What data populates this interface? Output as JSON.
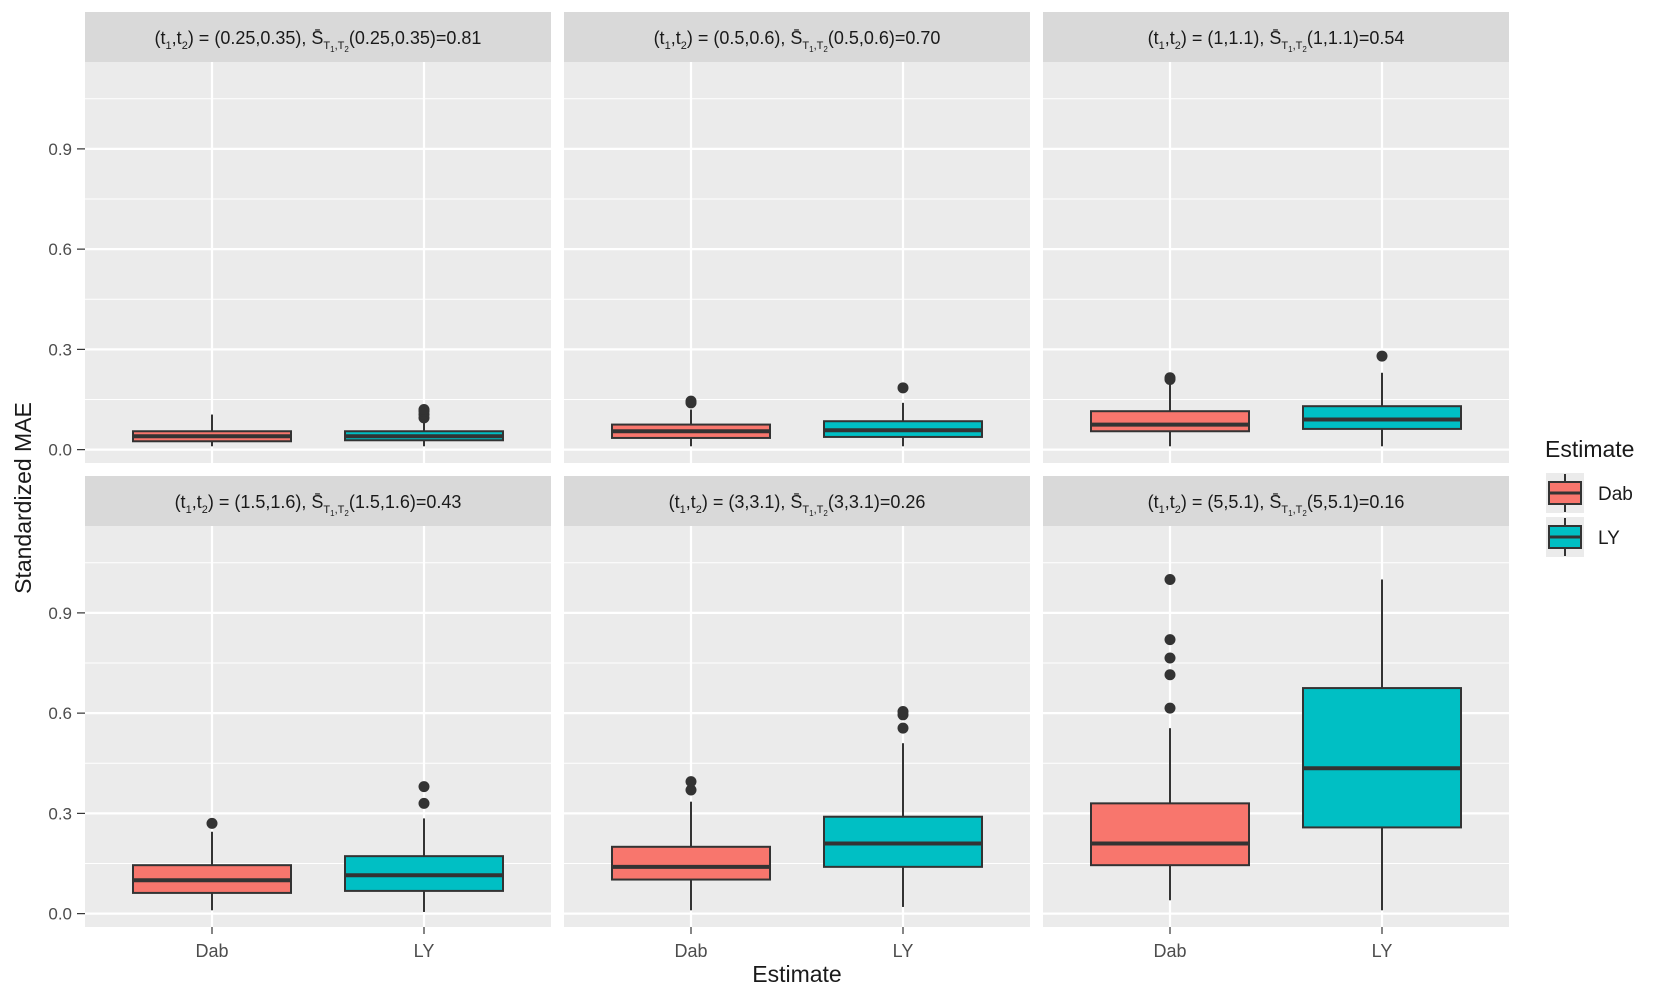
{
  "colors": {
    "dab": "#F8766D",
    "ly": "#00BFC4",
    "panel_bg": "#EBEBEB",
    "strip_bg": "#D9D9D9",
    "grid": "#FFFFFF",
    "text": "#1A1A1A",
    "tick_text": "#4D4D4D"
  },
  "chart_data": {
    "type": "boxplot",
    "xlabel": "Estimate",
    "ylabel": "Standardized MAE",
    "ylim": [
      -0.04,
      1.16
    ],
    "yticks": [
      "0.0",
      "0.3",
      "0.6",
      "0.9"
    ],
    "ytick_values": [
      0.0,
      0.3,
      0.6,
      0.9
    ],
    "categories": [
      "Dab",
      "LY"
    ],
    "legend": {
      "title": "Estimate",
      "position": "right",
      "entries": [
        {
          "label": "Dab",
          "color": "#F8766D"
        },
        {
          "label": "LY",
          "color": "#00BFC4"
        }
      ]
    },
    "panels": [
      {
        "tpair": "(0.25,0.35)",
        "sval": "(0.25,0.35)=0.81",
        "boxes": [
          {
            "name": "Dab",
            "min": 0.01,
            "q1": 0.025,
            "median": 0.04,
            "q3": 0.055,
            "max": 0.105,
            "outliers": []
          },
          {
            "name": "LY",
            "min": 0.01,
            "q1": 0.028,
            "median": 0.04,
            "q3": 0.055,
            "max": 0.09,
            "outliers": [
              0.095,
              0.105,
              0.115,
              0.12
            ]
          }
        ]
      },
      {
        "tpair": "(0.5,0.6)",
        "sval": "(0.5,0.6)=0.70",
        "boxes": [
          {
            "name": "Dab",
            "min": 0.01,
            "q1": 0.035,
            "median": 0.055,
            "q3": 0.075,
            "max": 0.12,
            "outliers": [
              0.14,
              0.145
            ]
          },
          {
            "name": "LY",
            "min": 0.01,
            "q1": 0.038,
            "median": 0.058,
            "q3": 0.085,
            "max": 0.14,
            "outliers": [
              0.185
            ]
          }
        ]
      },
      {
        "tpair": "(1,1.1)",
        "sval": "(1,1.1)=0.54",
        "boxes": [
          {
            "name": "Dab",
            "min": 0.01,
            "q1": 0.055,
            "median": 0.075,
            "q3": 0.115,
            "max": 0.2,
            "outliers": [
              0.21,
              0.215
            ]
          },
          {
            "name": "LY",
            "min": 0.01,
            "q1": 0.062,
            "median": 0.09,
            "q3": 0.13,
            "max": 0.23,
            "outliers": [
              0.28
            ]
          }
        ]
      },
      {
        "tpair": "(1.5,1.6)",
        "sval": "(1.5,1.6)=0.43",
        "boxes": [
          {
            "name": "Dab",
            "min": 0.01,
            "q1": 0.062,
            "median": 0.1,
            "q3": 0.145,
            "max": 0.245,
            "outliers": [
              0.27
            ]
          },
          {
            "name": "LY",
            "min": 0.005,
            "q1": 0.068,
            "median": 0.115,
            "q3": 0.172,
            "max": 0.285,
            "outliers": [
              0.33,
              0.38
            ]
          }
        ]
      },
      {
        "tpair": "(3,3.1)",
        "sval": "(3,3.1)=0.26",
        "boxes": [
          {
            "name": "Dab",
            "min": 0.01,
            "q1": 0.102,
            "median": 0.14,
            "q3": 0.2,
            "max": 0.335,
            "outliers": [
              0.37,
              0.395
            ]
          },
          {
            "name": "LY",
            "min": 0.02,
            "q1": 0.14,
            "median": 0.21,
            "q3": 0.29,
            "max": 0.51,
            "outliers": [
              0.555,
              0.595,
              0.605
            ]
          }
        ]
      },
      {
        "tpair": "(5,5.1)",
        "sval": "(5,5.1)=0.16",
        "boxes": [
          {
            "name": "Dab",
            "min": 0.04,
            "q1": 0.145,
            "median": 0.21,
            "q3": 0.33,
            "max": 0.555,
            "outliers": [
              0.615,
              0.715,
              0.765,
              0.82,
              1.0
            ]
          },
          {
            "name": "LY",
            "min": 0.01,
            "q1": 0.258,
            "median": 0.435,
            "q3": 0.675,
            "max": 1.0,
            "outliers": []
          }
        ]
      }
    ]
  }
}
